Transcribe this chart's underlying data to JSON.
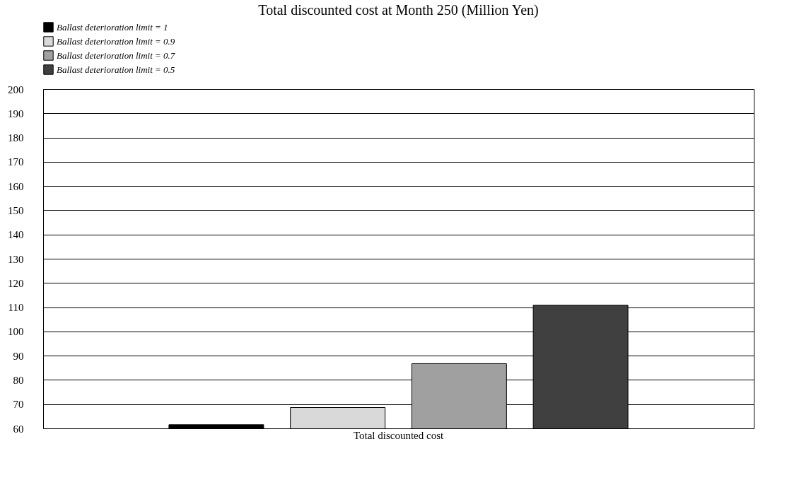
{
  "chart_data": {
    "type": "bar",
    "title": "Total discounted cost  at Month 250  (Million Yen)",
    "categories": [
      "Total discounted cost"
    ],
    "series": [
      {
        "name": "Ballast deterioration limit = 1",
        "color": "#000000",
        "values": [
          61.5
        ]
      },
      {
        "name": "Ballast deterioration limit = 0.9",
        "color": "#d9d9d9",
        "values": [
          68.6
        ]
      },
      {
        "name": "Ballast deterioration limit = 0.7",
        "color": "#a0a0a0",
        "values": [
          86.7
        ]
      },
      {
        "name": "Ballast deterioration limit = 0.5",
        "color": "#404040",
        "values": [
          110.8
        ]
      }
    ],
    "ylim": [
      60,
      200
    ],
    "yticks": [
      60,
      70,
      80,
      90,
      100,
      110,
      120,
      130,
      140,
      150,
      160,
      170,
      180,
      190,
      200
    ],
    "grid": "y",
    "legend": "top"
  }
}
